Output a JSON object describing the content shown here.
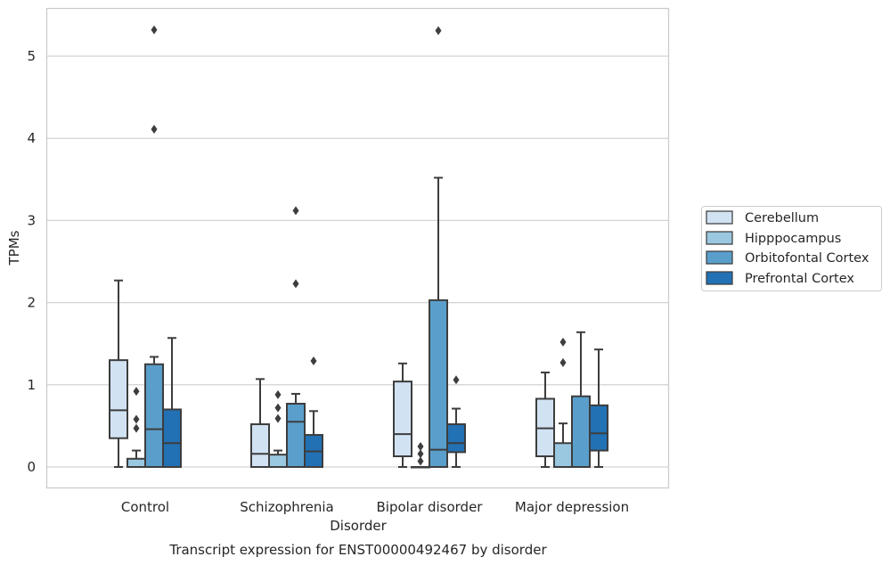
{
  "chart_data": {
    "type": "box",
    "title": "Transcript expression for ENST00000492467 by disorder",
    "xlabel": "Disorder",
    "ylabel": "TPMs",
    "ylim": [
      -0.26,
      5.6
    ],
    "yticks": [
      0,
      1,
      2,
      3,
      4,
      5
    ],
    "categories": [
      "Control",
      "Schizophrenia",
      "Bipolar disorder",
      "Major depression"
    ],
    "grid": "horizontal",
    "legend_position": "right",
    "series": [
      {
        "name": "Cerebellum",
        "color": "#d1e2f3",
        "boxes": [
          {
            "min": 0.0,
            "q1": 0.35,
            "median": 0.69,
            "q3": 1.3,
            "max": 2.27,
            "outliers": []
          },
          {
            "min": 0.0,
            "q1": 0.0,
            "median": 0.16,
            "q3": 0.52,
            "max": 1.07,
            "outliers": []
          },
          {
            "min": 0.0,
            "q1": 0.13,
            "median": 0.4,
            "q3": 1.04,
            "max": 1.26,
            "outliers": []
          },
          {
            "min": 0.0,
            "q1": 0.13,
            "median": 0.47,
            "q3": 0.83,
            "max": 1.15,
            "outliers": []
          }
        ]
      },
      {
        "name": "Hipppocampus",
        "color": "#9ac8e0",
        "boxes": [
          {
            "min": 0.0,
            "q1": 0.0,
            "median": 0.0,
            "q3": 0.1,
            "max": 0.2,
            "outliers": [
              0.92,
              0.58,
              0.47
            ]
          },
          {
            "min": 0.0,
            "q1": 0.0,
            "median": 0.0,
            "q3": 0.15,
            "max": 0.2,
            "outliers": [
              0.88,
              0.72,
              0.59
            ]
          },
          {
            "min": 0.0,
            "q1": 0.0,
            "median": 0.0,
            "q3": 0.0,
            "max": 0.0,
            "outliers": [
              0.25,
              0.16,
              0.07
            ]
          },
          {
            "min": 0.0,
            "q1": 0.0,
            "median": 0.0,
            "q3": 0.29,
            "max": 0.53,
            "outliers": [
              1.52,
              1.27
            ]
          }
        ]
      },
      {
        "name": "Orbitofontal Cortex",
        "color": "#5a9fcc",
        "boxes": [
          {
            "min": 0.0,
            "q1": 0.0,
            "median": 0.46,
            "q3": 1.25,
            "max": 1.34,
            "outliers": [
              5.32,
              4.11
            ]
          },
          {
            "min": 0.0,
            "q1": 0.0,
            "median": 0.55,
            "q3": 0.77,
            "max": 0.89,
            "outliers": [
              3.12,
              2.23
            ]
          },
          {
            "min": 0.0,
            "q1": 0.0,
            "median": 0.21,
            "q3": 2.03,
            "max": 3.52,
            "outliers": [
              5.31
            ]
          },
          {
            "min": 0.0,
            "q1": 0.0,
            "median": 0.0,
            "q3": 0.86,
            "max": 1.64,
            "outliers": []
          }
        ]
      },
      {
        "name": "Prefrontal Cortex",
        "color": "#2271b5",
        "boxes": [
          {
            "min": 0.0,
            "q1": 0.0,
            "median": 0.29,
            "q3": 0.7,
            "max": 1.57,
            "outliers": []
          },
          {
            "min": 0.0,
            "q1": 0.0,
            "median": 0.19,
            "q3": 0.39,
            "max": 0.68,
            "outliers": [
              1.29
            ]
          },
          {
            "min": 0.0,
            "q1": 0.18,
            "median": 0.29,
            "q3": 0.52,
            "max": 0.71,
            "outliers": [
              1.06
            ]
          },
          {
            "min": 0.0,
            "q1": 0.2,
            "median": 0.41,
            "q3": 0.75,
            "max": 1.43,
            "outliers": []
          }
        ]
      }
    ]
  }
}
